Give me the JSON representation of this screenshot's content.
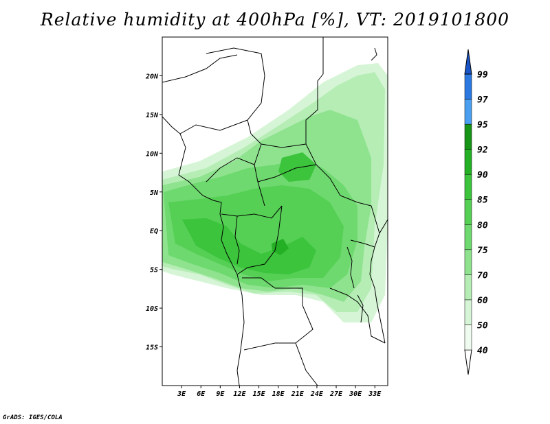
{
  "title": "Relative humidity at 400hPa [%], VT: 2019101800",
  "credit": "GrADS: IGES/COLA",
  "map": {
    "lon_labels": [
      "3E",
      "6E",
      "9E",
      "12E",
      "15E",
      "18E",
      "21E",
      "24E",
      "27E",
      "30E",
      "33E"
    ],
    "lat_labels": [
      "20N",
      "15N",
      "10N",
      "5N",
      "EQ",
      "5S",
      "10S",
      "15S"
    ],
    "lon_range": [
      0,
      35
    ],
    "lat_range": [
      -20,
      25
    ]
  },
  "colorbar": {
    "labels": [
      "40",
      "50",
      "60",
      "70",
      "75",
      "80",
      "85",
      "90",
      "92",
      "95",
      "97",
      "99"
    ],
    "colors": [
      "#eefbee",
      "#d6f5d6",
      "#b5edb5",
      "#8fe38f",
      "#6ed96e",
      "#55d055",
      "#3cc43c",
      "#24b024",
      "#169416",
      "#4a9ff0",
      "#2a78e0",
      "#1a55c8"
    ]
  }
}
